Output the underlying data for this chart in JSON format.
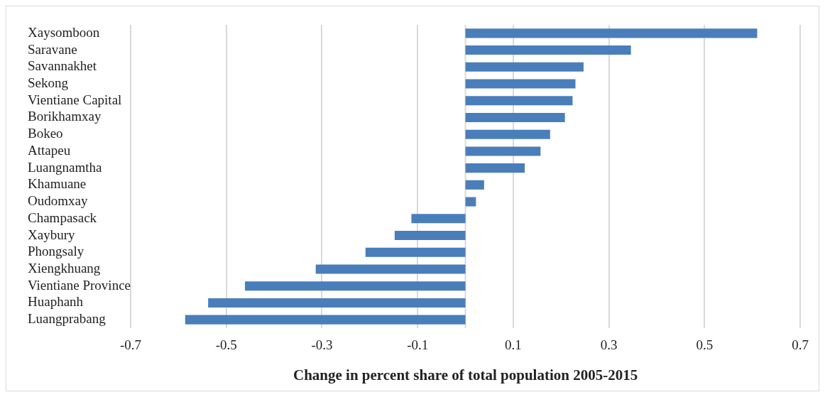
{
  "chart_data": {
    "type": "bar",
    "orientation": "horizontal",
    "xlabel": "Change in percent share of total population 2005-2015",
    "categories": [
      "Xaysomboon",
      "Saravane",
      "Savannakhet",
      "Sekong",
      "Vientiane Capital",
      "Borikhamxay",
      "Bokeo",
      "Attapeu",
      "Luangnamtha",
      "Khamuane",
      "Oudomxay",
      "Champasack",
      "Xaybury",
      "Phongsaly",
      "Xiengkhuang",
      "Vientiane Province",
      "Huaphanh",
      "Luangprabang"
    ],
    "values": [
      0.61,
      0.346,
      0.247,
      0.23,
      0.224,
      0.208,
      0.177,
      0.157,
      0.124,
      0.039,
      0.022,
      -0.113,
      -0.148,
      -0.209,
      -0.313,
      -0.461,
      -0.538,
      -0.586
    ],
    "color": "#4a7ebb",
    "xlim": [
      -0.7,
      0.7
    ],
    "xticks": [
      -0.7,
      -0.5,
      -0.3,
      -0.1,
      0.1,
      0.3,
      0.5,
      0.7
    ],
    "grid": "x",
    "legend": false
  }
}
